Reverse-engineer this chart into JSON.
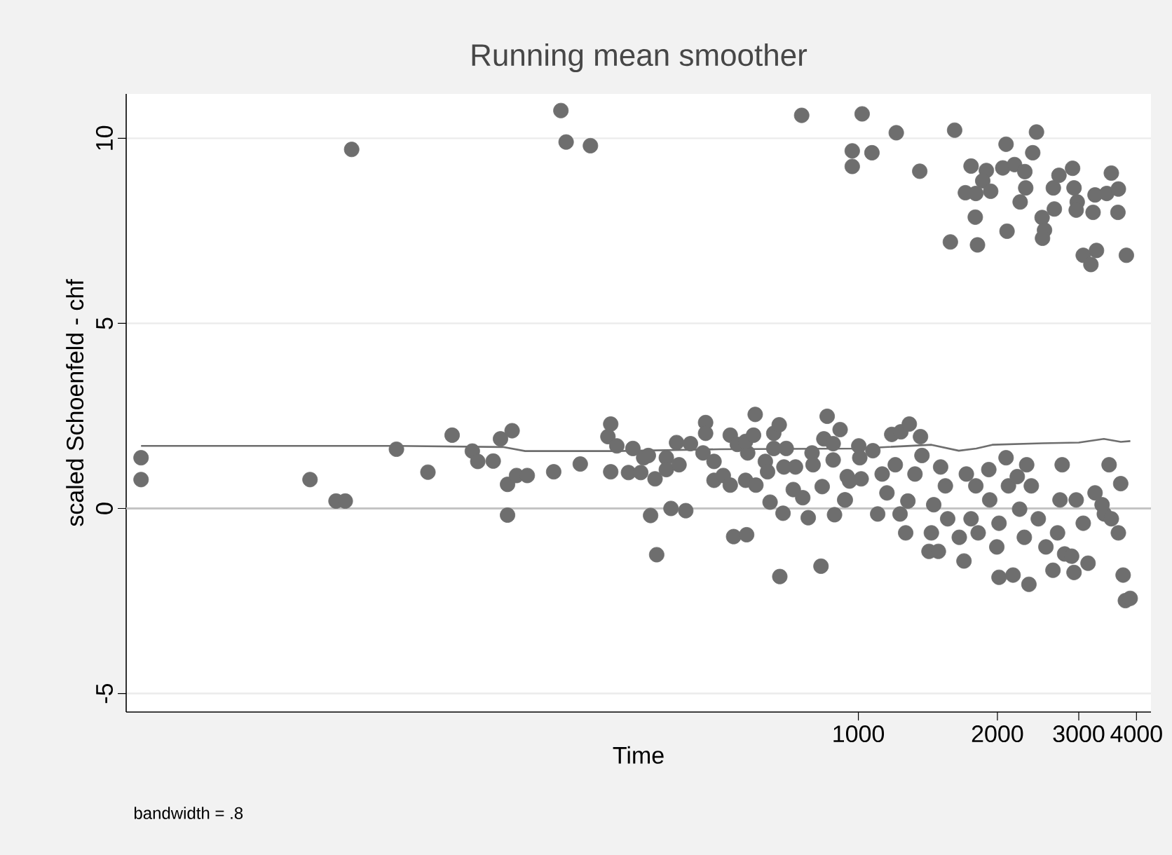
{
  "chart_data": {
    "type": "scatter",
    "title": "Running mean smoother",
    "xlabel": "Time",
    "ylabel": "scaled Schoenfeld - chf",
    "annotations": [
      "bandwidth = .8"
    ],
    "log": "x",
    "xlim": [
      26,
      4300
    ],
    "ylim": [
      -5.5,
      11.2
    ],
    "xticks": [
      1000,
      2000,
      3000,
      4000
    ],
    "yticks": [
      -5,
      0,
      5,
      10
    ],
    "grid": "y",
    "ref_lines": [
      {
        "axis": "y",
        "value": 0,
        "color": "#c4c4c4"
      }
    ],
    "series": [
      {
        "marker": "circle",
        "color": "#6e6e6e",
        "x": [
          28,
          28,
          65,
          74,
          77.5,
          80,
          100,
          117,
          132,
          146,
          150,
          162,
          168,
          178,
          174,
          182,
          192,
          174,
          227,
          233,
          263,
          754,
          970,
          970,
          1019,
          219,
          250,
          291,
          287,
          300,
          291,
          318,
          338,
          325,
          343,
          351,
          363,
          355,
          366,
          384,
          384,
          404,
          409,
          433,
          393,
          423,
          467,
          467,
          461,
          487,
          487,
          510,
          528,
          528,
          547,
          576,
          570,
          537,
          573,
          570,
          600,
          598,
          593,
          629,
          636,
          656,
          674,
          656,
          698,
          644,
          687,
          676,
          690,
          731,
          723,
          758,
          779,
          794,
          798,
          856,
          913,
          842,
          882,
          882,
          835,
          888,
          937,
          830,
          946,
          1002,
          1014,
          1075,
          1007,
          957,
          934,
          1101,
          1126,
          1153,
          1181,
          1236,
          1289,
          1363,
          1373,
          1326,
          1202,
          1231,
          1266,
          1280,
          1439,
          1422,
          1490,
          1456,
          1507,
          1543,
          1561,
          1654,
          1693,
          1713,
          1754,
          1817,
          1796,
          1916,
          1925,
          1994,
          2016,
          2162,
          2016,
          2088,
          2113,
          2234,
          2287,
          2340,
          2314,
          2368,
          2452,
          2547,
          2638,
          2699,
          2762,
          2732,
          2796,
          2895,
          2930,
          2962,
          3142,
          3068,
          3254,
          3490,
          3408,
          3529,
          3698,
          3655,
          3743,
          3785,
          3877,
          2208,
          3370,
          1070,
          1208,
          1358,
          1616,
          1582,
          1754,
          1893,
          1859,
          1705,
          1796,
          1934,
          1791,
          1811,
          2088,
          2054,
          2178,
          2293,
          2303,
          2240,
          2098,
          2385,
          2430,
          2499,
          2529,
          2504,
          2643,
          2656,
          2718,
          2909,
          2930,
          2977,
          2962,
          3222,
          3254,
          3449,
          3529,
          3655,
          3647,
          3068,
          3277,
          3187,
          3804
        ],
        "values": [
          1.37,
          0.78,
          0.78,
          0.2,
          0.2,
          9.7,
          1.6,
          0.98,
          1.98,
          1.55,
          1.27,
          1.28,
          1.88,
          2.1,
          0.65,
          0.89,
          0.89,
          -0.18,
          10.75,
          9.9,
          9.8,
          10.62,
          9.66,
          9.24,
          10.66,
          0.99,
          1.2,
          2.28,
          1.94,
          1.69,
          0.99,
          0.97,
          0.97,
          1.62,
          1.37,
          1.43,
          0.8,
          -0.19,
          -1.25,
          1.37,
          1.05,
          1.78,
          1.18,
          1.75,
          0.0,
          -0.06,
          2.32,
          2.03,
          1.5,
          1.27,
          0.76,
          0.89,
          0.63,
          1.98,
          1.73,
          1.5,
          1.81,
          -0.76,
          -0.71,
          0.76,
          0.63,
          2.54,
          1.98,
          1.27,
          0.99,
          2.03,
          2.26,
          1.62,
          1.62,
          0.17,
          -0.13,
          -1.84,
          1.12,
          1.12,
          0.51,
          0.29,
          -0.25,
          1.5,
          1.18,
          2.49,
          2.13,
          1.88,
          1.75,
          1.31,
          0.59,
          -0.17,
          0.23,
          -1.56,
          0.86,
          1.69,
          0.8,
          1.56,
          1.37,
          0.74,
          0.23,
          -0.15,
          0.93,
          0.42,
          2.0,
          2.07,
          2.28,
          1.94,
          1.43,
          0.93,
          1.18,
          -0.15,
          -0.66,
          0.2,
          -0.66,
          -1.16,
          -1.16,
          0.1,
          1.12,
          0.61,
          -0.28,
          -0.78,
          -1.42,
          0.93,
          -0.28,
          -0.66,
          0.61,
          1.05,
          0.23,
          -1.04,
          -1.86,
          -1.8,
          -0.4,
          1.37,
          0.61,
          -0.02,
          -0.78,
          -2.05,
          1.18,
          0.61,
          -0.28,
          -1.04,
          -1.67,
          -0.66,
          1.18,
          0.23,
          -1.23,
          -1.29,
          -1.73,
          0.23,
          -1.48,
          -0.4,
          0.42,
          1.18,
          -0.15,
          -0.28,
          0.67,
          -0.66,
          -1.8,
          -2.49,
          -2.43,
          0.86,
          0.1,
          9.61,
          10.15,
          9.11,
          10.22,
          7.2,
          9.25,
          9.13,
          8.85,
          8.53,
          8.51,
          8.57,
          7.87,
          7.12,
          9.84,
          9.2,
          9.29,
          9.1,
          8.66,
          8.28,
          7.49,
          9.61,
          10.17,
          7.86,
          7.52,
          7.3,
          8.66,
          8.09,
          9.0,
          9.19,
          8.66,
          8.28,
          8.06,
          8.0,
          8.47,
          8.51,
          9.06,
          8.63,
          8.0,
          6.84,
          6.97,
          6.59,
          6.84
        ]
      },
      {
        "type": "line",
        "color": "#6e6e6e",
        "x": [
          28,
          100,
          170,
          190,
          300,
          500,
          1000,
          1440,
          1650,
          1800,
          1950,
          2500,
          3000,
          3400,
          3700,
          3880
        ],
        "values": [
          1.69,
          1.69,
          1.66,
          1.55,
          1.55,
          1.6,
          1.62,
          1.72,
          1.56,
          1.62,
          1.72,
          1.76,
          1.78,
          1.88,
          1.8,
          1.82
        ]
      }
    ]
  }
}
